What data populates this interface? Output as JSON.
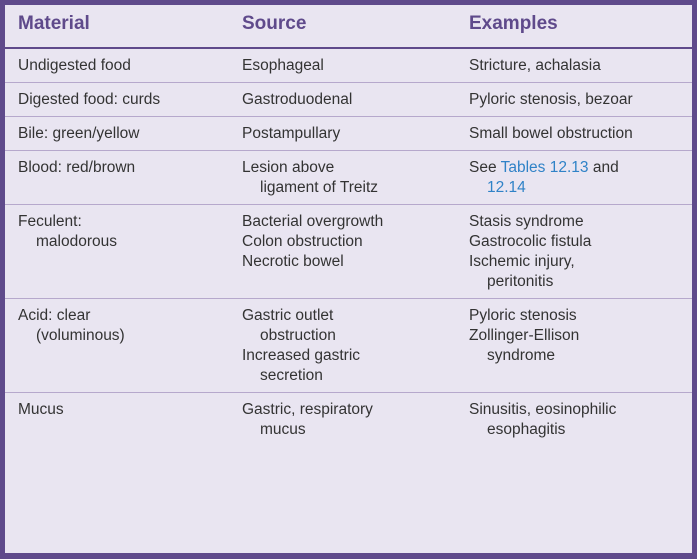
{
  "headers": [
    "Material",
    "Source",
    "Examples"
  ],
  "rows": [
    {
      "material": [
        "Undigested food"
      ],
      "source": [
        "Esophageal"
      ],
      "examples": [
        "Stricture, achalasia"
      ]
    },
    {
      "material": [
        "Digested food: curds"
      ],
      "source": [
        "Gastroduodenal"
      ],
      "examples": [
        "Pyloric stenosis, bezoar"
      ]
    },
    {
      "material": [
        "Bile: green/yellow"
      ],
      "source": [
        "Postampullary"
      ],
      "examples": [
        "Small bowel obstruction"
      ]
    },
    {
      "material": [
        "Blood: red/brown"
      ],
      "source": [
        "Lesion above",
        "ligament of Treitz"
      ],
      "examples_prefix": "See ",
      "examples_link1": "Tables 12.13",
      "examples_mid": " and",
      "examples_link2": "12.14"
    },
    {
      "material": [
        "Feculent:",
        "malodorous"
      ],
      "source": [
        "Bacterial overgrowth",
        "Colon obstruction",
        "Necrotic bowel"
      ],
      "examples": [
        "Stasis syndrome",
        "Gastrocolic fistula",
        "Ischemic injury,",
        "peritonitis"
      ]
    },
    {
      "material": [
        "Acid: clear",
        "(voluminous)"
      ],
      "source": [
        "Gastric outlet",
        "obstruction",
        "Increased gastric",
        "secretion"
      ],
      "examples": [
        "Pyloric stenosis",
        "Zollinger-Ellison",
        "syndrome"
      ]
    },
    {
      "material": [
        "Mucus"
      ],
      "source": [
        "Gastric, respiratory",
        "mucus"
      ],
      "examples": [
        "Sinusitis, eosinophilic",
        "esophagitis"
      ]
    }
  ],
  "colors": {
    "accent": "#5f4a8b",
    "background": "#e9e5f1",
    "link": "#2f82c7",
    "text": "#333333"
  }
}
